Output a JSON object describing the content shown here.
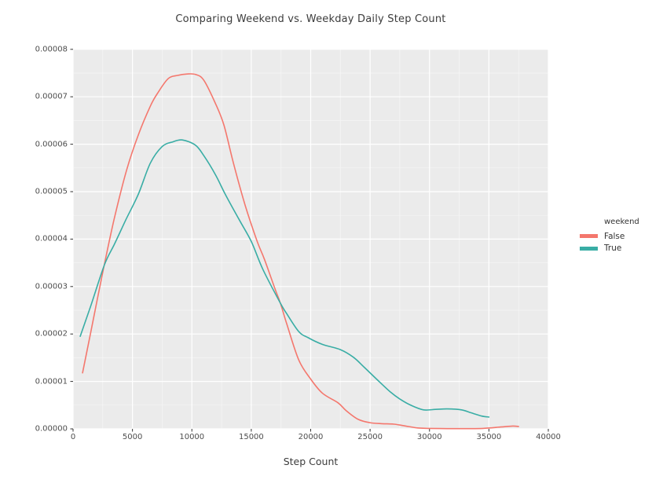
{
  "title": "Comparing Weekend vs. Weekday Daily Step Count",
  "legend": {
    "title": "weekend",
    "entries": [
      {
        "label": "False",
        "color": "#F4776D"
      },
      {
        "label": "True",
        "color": "#39ADA5"
      }
    ]
  },
  "chart_data": {
    "type": "line",
    "subtype": "kde-density",
    "title": "Comparing Weekend vs. Weekday Daily Step Count",
    "xlabel": "Step Count",
    "ylabel": "",
    "xlim": [
      0,
      40000
    ],
    "ylim": [
      0,
      8e-05
    ],
    "xticks": [
      0,
      5000,
      10000,
      15000,
      20000,
      25000,
      30000,
      35000,
      40000
    ],
    "xtick_labels": [
      "0",
      "5000",
      "10000",
      "15000",
      "20000",
      "25000",
      "30000",
      "35000",
      "40000"
    ],
    "yticks": [
      0,
      1e-05,
      2e-05,
      3e-05,
      4e-05,
      5e-05,
      6e-05,
      7e-05,
      8e-05
    ],
    "ytick_labels": [
      "0.00000",
      "0.00001",
      "0.00002",
      "0.00003",
      "0.00004",
      "0.00005",
      "0.00006",
      "0.00007",
      "0.00008"
    ],
    "grid": true,
    "legend_position": "right",
    "colors": {
      "panel_bg": "#EBEBEB",
      "grid_major": "#FFFFFF",
      "grid_minor": "#F6F6F6",
      "tick_mark": "#333333",
      "tick_text": "#4d4d4d",
      "title_text": "#3c3c3c"
    },
    "series": [
      {
        "name": "False",
        "color": "#F4776D",
        "x": [
          800,
          1500,
          2500,
          3440,
          4500,
          5500,
          6500,
          7100,
          8000,
          8800,
          9600,
          10300,
          11000,
          12000,
          12700,
          13500,
          14500,
          15500,
          16100,
          17000,
          17450,
          18000,
          19000,
          20000,
          21000,
          22300,
          23000,
          24000,
          25000,
          26000,
          27000,
          28000,
          29000,
          30000,
          31500,
          33000,
          34500,
          36000,
          37000,
          37500
        ],
        "y": [
          1.18e-05,
          2.05e-05,
          3.3e-05,
          4.4e-05,
          5.45e-05,
          6.2e-05,
          6.8e-05,
          7.07e-05,
          7.38e-05,
          7.45e-05,
          7.48e-05,
          7.47e-05,
          7.35e-05,
          6.85e-05,
          6.4e-05,
          5.6e-05,
          4.7e-05,
          3.95e-05,
          3.58e-05,
          2.95e-05,
          2.65e-05,
          2.2e-05,
          1.45e-05,
          1.05e-05,
          7.5e-06,
          5.5e-06,
          3.8e-06,
          2e-06,
          1.3e-06,
          1.1e-06,
          1e-06,
          6e-07,
          2e-07,
          1e-07,
          5e-08,
          5e-08,
          1e-07,
          4e-07,
          6e-07,
          5e-07
        ]
      },
      {
        "name": "True",
        "color": "#39ADA5",
        "x": [
          600,
          1500,
          2645,
          3500,
          4430,
          5500,
          6500,
          7500,
          8400,
          9200,
          10300,
          11000,
          12000,
          12800,
          14000,
          15000,
          16000,
          17450,
          18000,
          19000,
          19800,
          21000,
          22500,
          23600,
          24500,
          25500,
          26700,
          27500,
          28500,
          29500,
          30500,
          31500,
          32700,
          33500,
          34400,
          35000
        ],
        "y": [
          1.95e-05,
          2.6e-05,
          3.46e-05,
          3.9e-05,
          4.4e-05,
          4.95e-05,
          5.6e-05,
          5.95e-05,
          6.05e-05,
          6.09e-05,
          5.98e-05,
          5.76e-05,
          5.35e-05,
          4.95e-05,
          4.4e-05,
          3.95e-05,
          3.35e-05,
          2.65e-05,
          2.42e-05,
          2.05e-05,
          1.92e-05,
          1.78e-05,
          1.67e-05,
          1.51e-05,
          1.3e-05,
          1.06e-05,
          7.8e-06,
          6.3e-06,
          4.9e-06,
          4e-06,
          4.1e-06,
          4.2e-06,
          4e-06,
          3.4e-06,
          2.7e-06,
          2.5e-06
        ]
      }
    ]
  }
}
